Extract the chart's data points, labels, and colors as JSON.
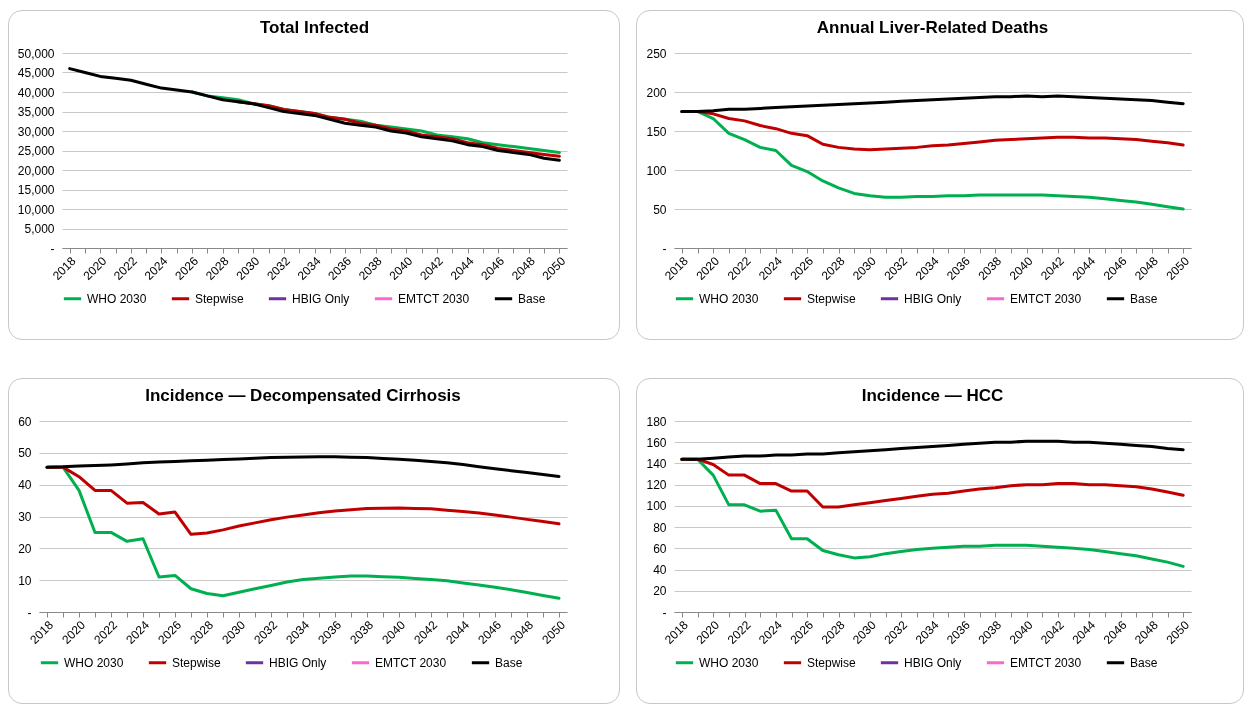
{
  "chart_data": [
    {
      "type": "line",
      "title": "Total Infected",
      "categories": [
        "2018",
        null,
        "2020",
        null,
        "2022",
        null,
        "2024",
        null,
        "2026",
        null,
        "2028",
        null,
        "2030",
        null,
        "2032",
        null,
        "2034",
        null,
        "2036",
        null,
        "2038",
        null,
        "2040",
        null,
        "2042",
        null,
        "2044",
        null,
        "2046",
        null,
        "2048",
        null,
        "2050"
      ],
      "ylim": [
        0,
        50000
      ],
      "yticks": [
        {
          "value": 0,
          "label": "-"
        },
        {
          "value": 5000,
          "label": "5,000"
        },
        {
          "value": 10000,
          "label": "10,000"
        },
        {
          "value": 15000,
          "label": "15,000"
        },
        {
          "value": 20000,
          "label": "20,000"
        },
        {
          "value": 25000,
          "label": "25,000"
        },
        {
          "value": 30000,
          "label": "30,000"
        },
        {
          "value": 35000,
          "label": "35,000"
        },
        {
          "value": 40000,
          "label": "40,000"
        },
        {
          "value": 45000,
          "label": "45,000"
        },
        {
          "value": 50000,
          "label": "50,000"
        }
      ],
      "grid": "y",
      "legend": "bottom",
      "line_style": "solid",
      "marker": "none",
      "series": [
        {
          "name": "WHO 2030",
          "color": "#00b050",
          "values": [
            null,
            null,
            null,
            null,
            null,
            null,
            null,
            null,
            40000,
            39000,
            38500,
            38000,
            37000,
            36500,
            35500,
            35000,
            34500,
            33500,
            33000,
            32500,
            31500,
            31000,
            30500,
            30000,
            29000,
            28500,
            28000,
            27000,
            26500,
            26000,
            25500,
            25000,
            24500
          ]
        },
        {
          "name": "Stepwise",
          "color": "#c00000",
          "values": [
            null,
            null,
            null,
            null,
            null,
            null,
            null,
            null,
            null,
            null,
            null,
            37500,
            37000,
            36500,
            35500,
            35000,
            34500,
            33500,
            33000,
            32000,
            31500,
            30500,
            30000,
            29000,
            28500,
            28000,
            27000,
            26500,
            25500,
            25000,
            24500,
            24000,
            23500
          ]
        },
        {
          "name": "HBIG Only",
          "color": "#7030a0",
          "values": [
            null,
            null,
            null,
            null,
            null,
            null,
            null,
            null,
            null,
            null,
            null,
            null,
            null,
            null,
            null,
            null,
            null,
            null,
            null,
            null,
            null,
            null,
            null,
            null,
            null,
            null,
            null,
            null,
            null,
            null,
            null,
            null,
            null
          ]
        },
        {
          "name": "EMTCT 2030",
          "color": "#ff66cc",
          "values": [
            null,
            null,
            null,
            null,
            null,
            null,
            null,
            null,
            null,
            null,
            null,
            null,
            null,
            null,
            null,
            null,
            null,
            null,
            null,
            null,
            null,
            null,
            null,
            null,
            null,
            null,
            null,
            null,
            null,
            null,
            null,
            null,
            null
          ]
        },
        {
          "name": "Base",
          "color": "#000000",
          "values": [
            46000,
            45000,
            44000,
            43500,
            43000,
            42000,
            41000,
            40500,
            40000,
            39000,
            38000,
            37500,
            37000,
            36000,
            35000,
            34500,
            34000,
            33000,
            32000,
            31500,
            31000,
            30000,
            29500,
            28500,
            28000,
            27500,
            26500,
            26000,
            25000,
            24500,
            24000,
            23000,
            22500
          ]
        }
      ]
    },
    {
      "type": "line",
      "title": "Annual Liver-Related Deaths",
      "categories": [
        "2018",
        null,
        "2020",
        null,
        "2022",
        null,
        "2024",
        null,
        "2026",
        null,
        "2028",
        null,
        "2030",
        null,
        "2032",
        null,
        "2034",
        null,
        "2036",
        null,
        "2038",
        null,
        "2040",
        null,
        "2042",
        null,
        "2044",
        null,
        "2046",
        null,
        "2048",
        null,
        "2050"
      ],
      "ylim": [
        0,
        250
      ],
      "yticks": [
        {
          "value": 0,
          "label": "-"
        },
        50,
        100,
        150,
        200,
        250
      ],
      "grid": "y",
      "legend": "bottom",
      "line_style": "solid",
      "marker": "none",
      "series": [
        {
          "name": "WHO 2030",
          "color": "#00b050",
          "values": [
            175,
            175,
            166,
            147,
            139,
            129,
            125,
            106,
            98,
            86,
            77,
            70,
            67,
            65,
            65,
            66,
            66,
            67,
            67,
            68,
            68,
            68,
            68,
            68,
            67,
            66,
            65,
            63,
            61,
            59,
            56,
            53,
            50
          ]
        },
        {
          "name": "Stepwise",
          "color": "#c00000",
          "values": [
            175,
            175,
            172,
            166,
            163,
            157,
            153,
            147,
            144,
            133,
            129,
            127,
            126,
            127,
            128,
            129,
            131,
            132,
            134,
            136,
            138,
            139,
            140,
            141,
            142,
            142,
            141,
            141,
            140,
            139,
            137,
            135,
            132
          ]
        },
        {
          "name": "HBIG Only",
          "color": "#7030a0",
          "values": [
            null,
            null,
            null,
            null,
            null,
            null,
            null,
            null,
            null,
            null,
            null,
            null,
            null,
            null,
            null,
            null,
            null,
            null,
            null,
            null,
            null,
            null,
            null,
            null,
            null,
            null,
            null,
            null,
            null,
            null,
            null,
            null,
            null
          ]
        },
        {
          "name": "EMTCT 2030",
          "color": "#ff66cc",
          "values": [
            null,
            null,
            null,
            null,
            null,
            null,
            null,
            null,
            null,
            null,
            null,
            null,
            null,
            null,
            null,
            null,
            null,
            null,
            null,
            null,
            null,
            null,
            null,
            null,
            null,
            null,
            null,
            null,
            null,
            null,
            null,
            null,
            null
          ]
        },
        {
          "name": "Base",
          "color": "#000000",
          "values": [
            175,
            175,
            176,
            178,
            178,
            179,
            180,
            181,
            182,
            183,
            184,
            185,
            186,
            187,
            188,
            189,
            190,
            191,
            192,
            193,
            194,
            194,
            195,
            194,
            195,
            194,
            193,
            192,
            191,
            190,
            189,
            187,
            185
          ]
        }
      ]
    },
    {
      "type": "line",
      "title": "Incidence — Decompensated Cirrhosis",
      "categories": [
        "2018",
        null,
        "2020",
        null,
        "2022",
        null,
        "2024",
        null,
        "2026",
        null,
        "2028",
        null,
        "2030",
        null,
        "2032",
        null,
        "2034",
        null,
        "2036",
        null,
        "2038",
        null,
        "2040",
        null,
        "2042",
        null,
        "2044",
        null,
        "2046",
        null,
        "2048",
        null,
        "2050"
      ],
      "ylim": [
        0,
        60
      ],
      "yticks": [
        {
          "value": 0,
          "label": "-"
        },
        10,
        20,
        30,
        40,
        50,
        60
      ],
      "grid": "y",
      "legend": "bottom",
      "line_style": "solid",
      "marker": "none",
      "series": [
        {
          "name": "WHO 2030",
          "color": "#00b050",
          "values": [
            45.5,
            45.5,
            38.2,
            25.0,
            25.0,
            22.2,
            23.0,
            11.0,
            11.5,
            7.3,
            5.8,
            5.1,
            6.2,
            7.3,
            8.3,
            9.4,
            10.2,
            10.6,
            11.0,
            11.3,
            11.3,
            11.1,
            10.9,
            10.5,
            10.2,
            9.8,
            9.1,
            8.5,
            7.8,
            7.0,
            6.1,
            5.2,
            4.3
          ]
        },
        {
          "name": "Stepwise",
          "color": "#c00000",
          "values": [
            45.5,
            45.5,
            42.5,
            38.2,
            38.2,
            34.2,
            34.4,
            30.8,
            31.4,
            24.4,
            24.8,
            25.8,
            27.0,
            28.0,
            29.0,
            29.8,
            30.5,
            31.2,
            31.7,
            32.1,
            32.5,
            32.6,
            32.7,
            32.5,
            32.4,
            32.0,
            31.6,
            31.1,
            30.5,
            29.8,
            29.1,
            28.4,
            27.7
          ]
        },
        {
          "name": "HBIG Only",
          "color": "#7030a0",
          "values": [
            null,
            null,
            null,
            null,
            null,
            null,
            null,
            null,
            null,
            null,
            null,
            null,
            null,
            null,
            null,
            null,
            null,
            null,
            null,
            null,
            null,
            null,
            null,
            null,
            null,
            null,
            null,
            null,
            null,
            null,
            null,
            null,
            null
          ]
        },
        {
          "name": "EMTCT 2030",
          "color": "#ff66cc",
          "values": [
            null,
            null,
            null,
            null,
            null,
            null,
            null,
            null,
            null,
            null,
            null,
            null,
            null,
            null,
            null,
            null,
            null,
            null,
            null,
            null,
            null,
            null,
            null,
            null,
            null,
            null,
            null,
            null,
            null,
            null,
            null,
            null,
            null
          ]
        },
        {
          "name": "Base",
          "color": "#000000",
          "values": [
            45.5,
            45.6,
            45.9,
            46.0,
            46.2,
            46.5,
            46.9,
            47.1,
            47.3,
            47.5,
            47.7,
            47.9,
            48.1,
            48.3,
            48.5,
            48.6,
            48.7,
            48.8,
            48.8,
            48.6,
            48.5,
            48.2,
            48.0,
            47.7,
            47.3,
            46.9,
            46.3,
            45.6,
            45.0,
            44.4,
            43.8,
            43.2,
            42.6
          ]
        }
      ]
    },
    {
      "type": "line",
      "title": "Incidence — HCC",
      "categories": [
        "2018",
        null,
        "2020",
        null,
        "2022",
        null,
        "2024",
        null,
        "2026",
        null,
        "2028",
        null,
        "2030",
        null,
        "2032",
        null,
        "2034",
        null,
        "2036",
        null,
        "2038",
        null,
        "2040",
        null,
        "2042",
        null,
        "2044",
        null,
        "2046",
        null,
        "2048",
        null,
        "2050"
      ],
      "ylim": [
        0,
        180
      ],
      "yticks": [
        {
          "value": 0,
          "label": "-"
        },
        20,
        40,
        60,
        80,
        100,
        120,
        140,
        160,
        180
      ],
      "grid": "y",
      "legend": "bottom",
      "line_style": "solid",
      "marker": "none",
      "series": [
        {
          "name": "WHO 2030",
          "color": "#00b050",
          "values": [
            144,
            144,
            129,
            101,
            101,
            95,
            96,
            69,
            69,
            58,
            54,
            51,
            52,
            55,
            57,
            59,
            60,
            61,
            62,
            62,
            63,
            63,
            63,
            62,
            61,
            60,
            59,
            57,
            55,
            53,
            50,
            47,
            43
          ]
        },
        {
          "name": "Stepwise",
          "color": "#c00000",
          "values": [
            144,
            144,
            139,
            129,
            129,
            121,
            121,
            114,
            114,
            99,
            99,
            101,
            103,
            105,
            107,
            109,
            111,
            112,
            114,
            116,
            117,
            119,
            120,
            120,
            121,
            121,
            120,
            120,
            119,
            118,
            116,
            113,
            110
          ]
        },
        {
          "name": "HBIG Only",
          "color": "#7030a0",
          "values": [
            null,
            null,
            null,
            null,
            null,
            null,
            null,
            null,
            null,
            null,
            null,
            null,
            null,
            null,
            null,
            null,
            null,
            null,
            null,
            null,
            null,
            null,
            null,
            null,
            null,
            null,
            null,
            null,
            null,
            null,
            null,
            null,
            null
          ]
        },
        {
          "name": "EMTCT 2030",
          "color": "#ff66cc",
          "values": [
            null,
            null,
            null,
            null,
            null,
            null,
            null,
            null,
            null,
            null,
            null,
            null,
            null,
            null,
            null,
            null,
            null,
            null,
            null,
            null,
            null,
            null,
            null,
            null,
            null,
            null,
            null,
            null,
            null,
            null,
            null,
            null,
            null
          ]
        },
        {
          "name": "Base",
          "color": "#000000",
          "values": [
            144,
            144,
            145,
            146,
            147,
            147,
            148,
            148,
            149,
            149,
            150,
            151,
            152,
            153,
            154,
            155,
            156,
            157,
            158,
            159,
            160,
            160,
            161,
            161,
            161,
            160,
            160,
            159,
            158,
            157,
            156,
            154,
            153
          ]
        }
      ]
    }
  ]
}
